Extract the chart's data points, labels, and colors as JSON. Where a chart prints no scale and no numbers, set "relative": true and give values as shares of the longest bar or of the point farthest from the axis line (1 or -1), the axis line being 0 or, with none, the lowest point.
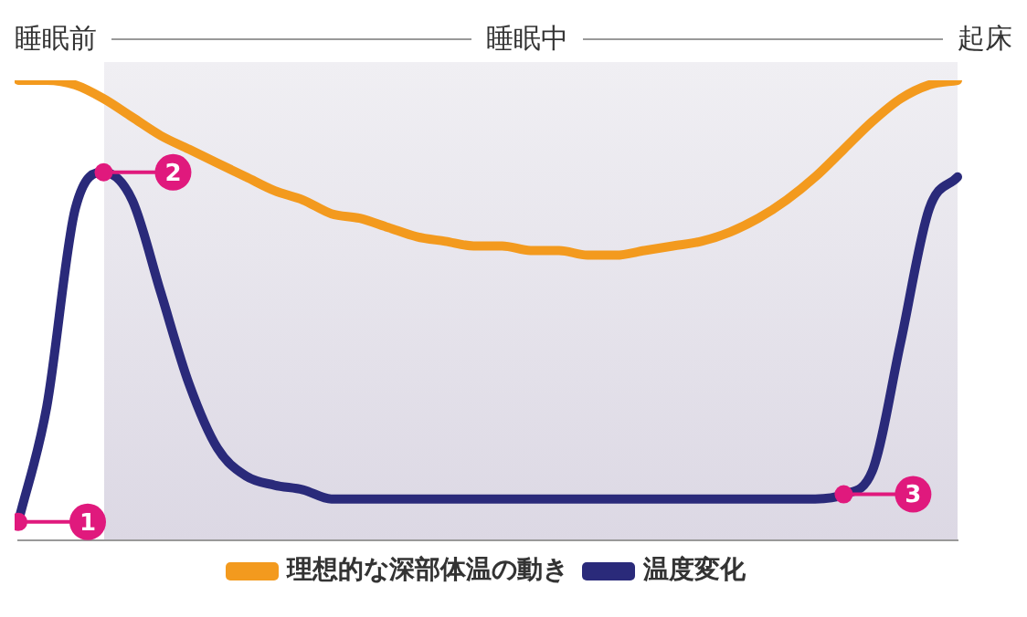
{
  "chart_data": {
    "type": "line",
    "relative": true,
    "legend": "bottom",
    "marker": "none",
    "line_style": "solid",
    "categories": [
      null,
      null,
      null,
      null,
      null,
      null,
      null,
      null,
      null,
      null,
      null,
      null,
      null,
      null,
      null,
      null,
      null,
      null,
      null,
      null,
      null,
      null,
      null,
      null,
      null,
      null,
      null,
      null,
      null,
      null,
      null,
      null,
      null,
      null
    ],
    "series": [
      {
        "name": "理想的な深部体温の動き",
        "color": "#f39a1e",
        "values": [
          1.0,
          1.0,
          0.99,
          0.96,
          0.92,
          0.88,
          0.85,
          0.82,
          0.79,
          0.76,
          0.74,
          0.71,
          0.7,
          0.68,
          0.66,
          0.65,
          0.64,
          0.64,
          0.63,
          0.63,
          0.62,
          0.62,
          0.63,
          0.64,
          0.65,
          0.67,
          0.7,
          0.74,
          0.79,
          0.85,
          0.91,
          0.96,
          0.99,
          1.0
        ]
      },
      {
        "name": "温度変化",
        "color": "#2a2a7a",
        "values": [
          0.04,
          0.29,
          0.72,
          0.8,
          0.74,
          0.54,
          0.34,
          0.2,
          0.14,
          0.12,
          0.11,
          0.09,
          0.09,
          0.09,
          0.09,
          0.09,
          0.09,
          0.09,
          0.09,
          0.09,
          0.09,
          0.09,
          0.09,
          0.09,
          0.09,
          0.09,
          0.09,
          0.09,
          0.09,
          0.1,
          0.15,
          0.43,
          0.72,
          0.79
        ]
      }
    ],
    "annotations": [
      "睡眠前",
      "睡眠中",
      "起床",
      {
        "text": "1",
        "y": 0.04
      },
      {
        "text": "2",
        "y": 0.8
      },
      {
        "text": "3",
        "y": 0.1
      }
    ]
  }
}
